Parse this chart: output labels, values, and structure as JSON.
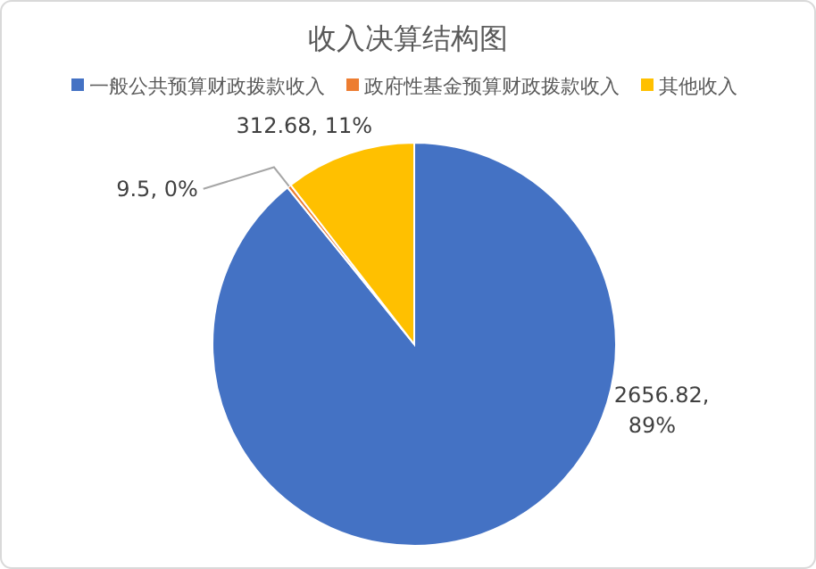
{
  "chart_data": {
    "type": "pie",
    "title": "收入决算结构图",
    "categories": [
      "一般公共预算财政拨款收入",
      "政府性基金预算财政拨款收入",
      "其他收入"
    ],
    "values": [
      2656.82,
      9.5,
      312.68
    ],
    "colors": [
      "#4472c4",
      "#ed7d31",
      "#ffc000"
    ],
    "value_labels": [
      "2656.82, 89%",
      "9.5, 0%",
      "312.68, 11%"
    ],
    "legend": "top"
  }
}
